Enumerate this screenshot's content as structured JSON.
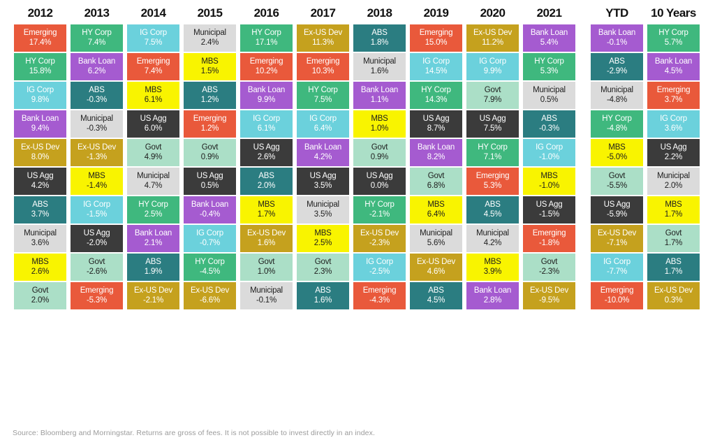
{
  "chart_data": {
    "type": "table",
    "description": "Quilt chart of annual fixed income asset class total returns, ranked best to worst within each column",
    "legend_position": "none",
    "grid": false,
    "classes": {
      "Emerging": {
        "bg": "#E9593B",
        "text": "#FFFFFF"
      },
      "HY Corp": {
        "bg": "#3FB87E",
        "text": "#FFFFFF"
      },
      "IG Corp": {
        "bg": "#6BD1DC",
        "text": "#FFFFFF"
      },
      "Bank Loan": {
        "bg": "#A55BD0",
        "text": "#FFFFFF"
      },
      "Ex-US Dev": {
        "bg": "#C5A11E",
        "text": "#FFFFFF"
      },
      "US Agg": {
        "bg": "#3B3B3B",
        "text": "#FFFFFF"
      },
      "ABS": {
        "bg": "#2B7D81",
        "text": "#FFFFFF"
      },
      "Municipal": {
        "bg": "#DBDBDB",
        "text": "#1E1E1E"
      },
      "MBS": {
        "bg": "#F9F400",
        "text": "#1E1E1E"
      },
      "Govt": {
        "bg": "#ABDFC7",
        "text": "#1E1E1E"
      }
    },
    "columns": [
      {
        "label": "2012",
        "cells": [
          [
            "Emerging",
            "17.4%"
          ],
          [
            "HY Corp",
            "15.8%"
          ],
          [
            "IG Corp",
            "9.8%"
          ],
          [
            "Bank Loan",
            "9.4%"
          ],
          [
            "Ex-US Dev",
            "8.0%"
          ],
          [
            "US Agg",
            "4.2%"
          ],
          [
            "ABS",
            "3.7%"
          ],
          [
            "Municipal",
            "3.6%"
          ],
          [
            "MBS",
            "2.6%"
          ],
          [
            "Govt",
            "2.0%"
          ]
        ]
      },
      {
        "label": "2013",
        "cells": [
          [
            "HY Corp",
            "7.4%"
          ],
          [
            "Bank Loan",
            "6.2%"
          ],
          [
            "ABS",
            "-0.3%"
          ],
          [
            "Municipal",
            "-0.3%"
          ],
          [
            "Ex-US Dev",
            "-1.3%"
          ],
          [
            "MBS",
            "-1.4%"
          ],
          [
            "IG Corp",
            "-1.5%"
          ],
          [
            "US Agg",
            "-2.0%"
          ],
          [
            "Govt",
            "-2.6%"
          ],
          [
            "Emerging",
            "-5.3%"
          ]
        ]
      },
      {
        "label": "2014",
        "cells": [
          [
            "IG Corp",
            "7.5%"
          ],
          [
            "Emerging",
            "7.4%"
          ],
          [
            "MBS",
            "6.1%"
          ],
          [
            "US Agg",
            "6.0%"
          ],
          [
            "Govt",
            "4.9%"
          ],
          [
            "Municipal",
            "4.7%"
          ],
          [
            "HY Corp",
            "2.5%"
          ],
          [
            "Bank Loan",
            "2.1%"
          ],
          [
            "ABS",
            "1.9%"
          ],
          [
            "Ex-US Dev",
            "-2.1%"
          ]
        ]
      },
      {
        "label": "2015",
        "cells": [
          [
            "Municipal",
            "2.4%"
          ],
          [
            "MBS",
            "1.5%"
          ],
          [
            "ABS",
            "1.2%"
          ],
          [
            "Emerging",
            "1.2%"
          ],
          [
            "Govt",
            "0.9%"
          ],
          [
            "US Agg",
            "0.5%"
          ],
          [
            "Bank Loan",
            "-0.4%"
          ],
          [
            "IG Corp",
            "-0.7%"
          ],
          [
            "HY Corp",
            "-4.5%"
          ],
          [
            "Ex-US Dev",
            "-6.6%"
          ]
        ]
      },
      {
        "label": "2016",
        "cells": [
          [
            "HY Corp",
            "17.1%"
          ],
          [
            "Emerging",
            "10.2%"
          ],
          [
            "Bank Loan",
            "9.9%"
          ],
          [
            "IG Corp",
            "6.1%"
          ],
          [
            "US Agg",
            "2.6%"
          ],
          [
            "ABS",
            "2.0%"
          ],
          [
            "MBS",
            "1.7%"
          ],
          [
            "Ex-US Dev",
            "1.6%"
          ],
          [
            "Govt",
            "1.0%"
          ],
          [
            "Municipal",
            "-0.1%"
          ]
        ]
      },
      {
        "label": "2017",
        "cells": [
          [
            "Ex-US Dev",
            "11.3%"
          ],
          [
            "Emerging",
            "10.3%"
          ],
          [
            "HY Corp",
            "7.5%"
          ],
          [
            "IG Corp",
            "6.4%"
          ],
          [
            "Bank Loan",
            "4.2%"
          ],
          [
            "US Agg",
            "3.5%"
          ],
          [
            "Municipal",
            "3.5%"
          ],
          [
            "MBS",
            "2.5%"
          ],
          [
            "Govt",
            "2.3%"
          ],
          [
            "ABS",
            "1.6%"
          ]
        ]
      },
      {
        "label": "2018",
        "cells": [
          [
            "ABS",
            "1.8%"
          ],
          [
            "Municipal",
            "1.6%"
          ],
          [
            "Bank Loan",
            "1.1%"
          ],
          [
            "MBS",
            "1.0%"
          ],
          [
            "Govt",
            "0.9%"
          ],
          [
            "US Agg",
            "0.0%"
          ],
          [
            "HY Corp",
            "-2.1%"
          ],
          [
            "Ex-US Dev",
            "-2.3%"
          ],
          [
            "IG Corp",
            "-2.5%"
          ],
          [
            "Emerging",
            "-4.3%"
          ]
        ]
      },
      {
        "label": "2019",
        "cells": [
          [
            "Emerging",
            "15.0%"
          ],
          [
            "IG Corp",
            "14.5%"
          ],
          [
            "HY Corp",
            "14.3%"
          ],
          [
            "US Agg",
            "8.7%"
          ],
          [
            "Bank Loan",
            "8.2%"
          ],
          [
            "Govt",
            "6.8%"
          ],
          [
            "MBS",
            "6.4%"
          ],
          [
            "Municipal",
            "5.6%"
          ],
          [
            "Ex-US Dev",
            "4.6%"
          ],
          [
            "ABS",
            "4.5%"
          ]
        ]
      },
      {
        "label": "2020",
        "cells": [
          [
            "Ex-US Dev",
            "11.2%"
          ],
          [
            "IG Corp",
            "9.9%"
          ],
          [
            "Govt",
            "7.9%"
          ],
          [
            "US Agg",
            "7.5%"
          ],
          [
            "HY Corp",
            "7.1%"
          ],
          [
            "Emerging",
            "5.3%"
          ],
          [
            "ABS",
            "4.5%"
          ],
          [
            "Municipal",
            "4.2%"
          ],
          [
            "MBS",
            "3.9%"
          ],
          [
            "Bank Loan",
            "2.8%"
          ]
        ]
      },
      {
        "label": "2021",
        "cells": [
          [
            "Bank Loan",
            "5.4%"
          ],
          [
            "HY Corp",
            "5.3%"
          ],
          [
            "Municipal",
            "0.5%"
          ],
          [
            "ABS",
            "-0.3%"
          ],
          [
            "IG Corp",
            "-1.0%"
          ],
          [
            "MBS",
            "-1.0%"
          ],
          [
            "US Agg",
            "-1.5%"
          ],
          [
            "Emerging",
            "-1.8%"
          ],
          [
            "Govt",
            "-2.3%"
          ],
          [
            "Ex-US Dev",
            "-9.5%"
          ]
        ]
      },
      {
        "label": "YTD",
        "cells": [
          [
            "Bank Loan",
            "-0.1%"
          ],
          [
            "ABS",
            "-2.9%"
          ],
          [
            "Municipal",
            "-4.8%"
          ],
          [
            "HY Corp",
            "-4.8%"
          ],
          [
            "MBS",
            "-5.0%"
          ],
          [
            "Govt",
            "-5.5%"
          ],
          [
            "US Agg",
            "-5.9%"
          ],
          [
            "Ex-US Dev",
            "-7.1%"
          ],
          [
            "IG Corp",
            "-7.7%"
          ],
          [
            "Emerging",
            "-10.0%"
          ]
        ]
      },
      {
        "label": "10 Years",
        "cells": [
          [
            "HY Corp",
            "5.7%"
          ],
          [
            "Bank Loan",
            "4.5%"
          ],
          [
            "Emerging",
            "3.7%"
          ],
          [
            "IG Corp",
            "3.6%"
          ],
          [
            "US Agg",
            "2.2%"
          ],
          [
            "Municipal",
            "2.0%"
          ],
          [
            "MBS",
            "1.7%"
          ],
          [
            "Govt",
            "1.7%"
          ],
          [
            "ABS",
            "1.7%"
          ],
          [
            "Ex-US Dev",
            "0.3%"
          ]
        ]
      }
    ]
  },
  "source": "Source: Bloomberg and Morningstar. Returns are gross of fees. It is not possible to invest directly in an index."
}
